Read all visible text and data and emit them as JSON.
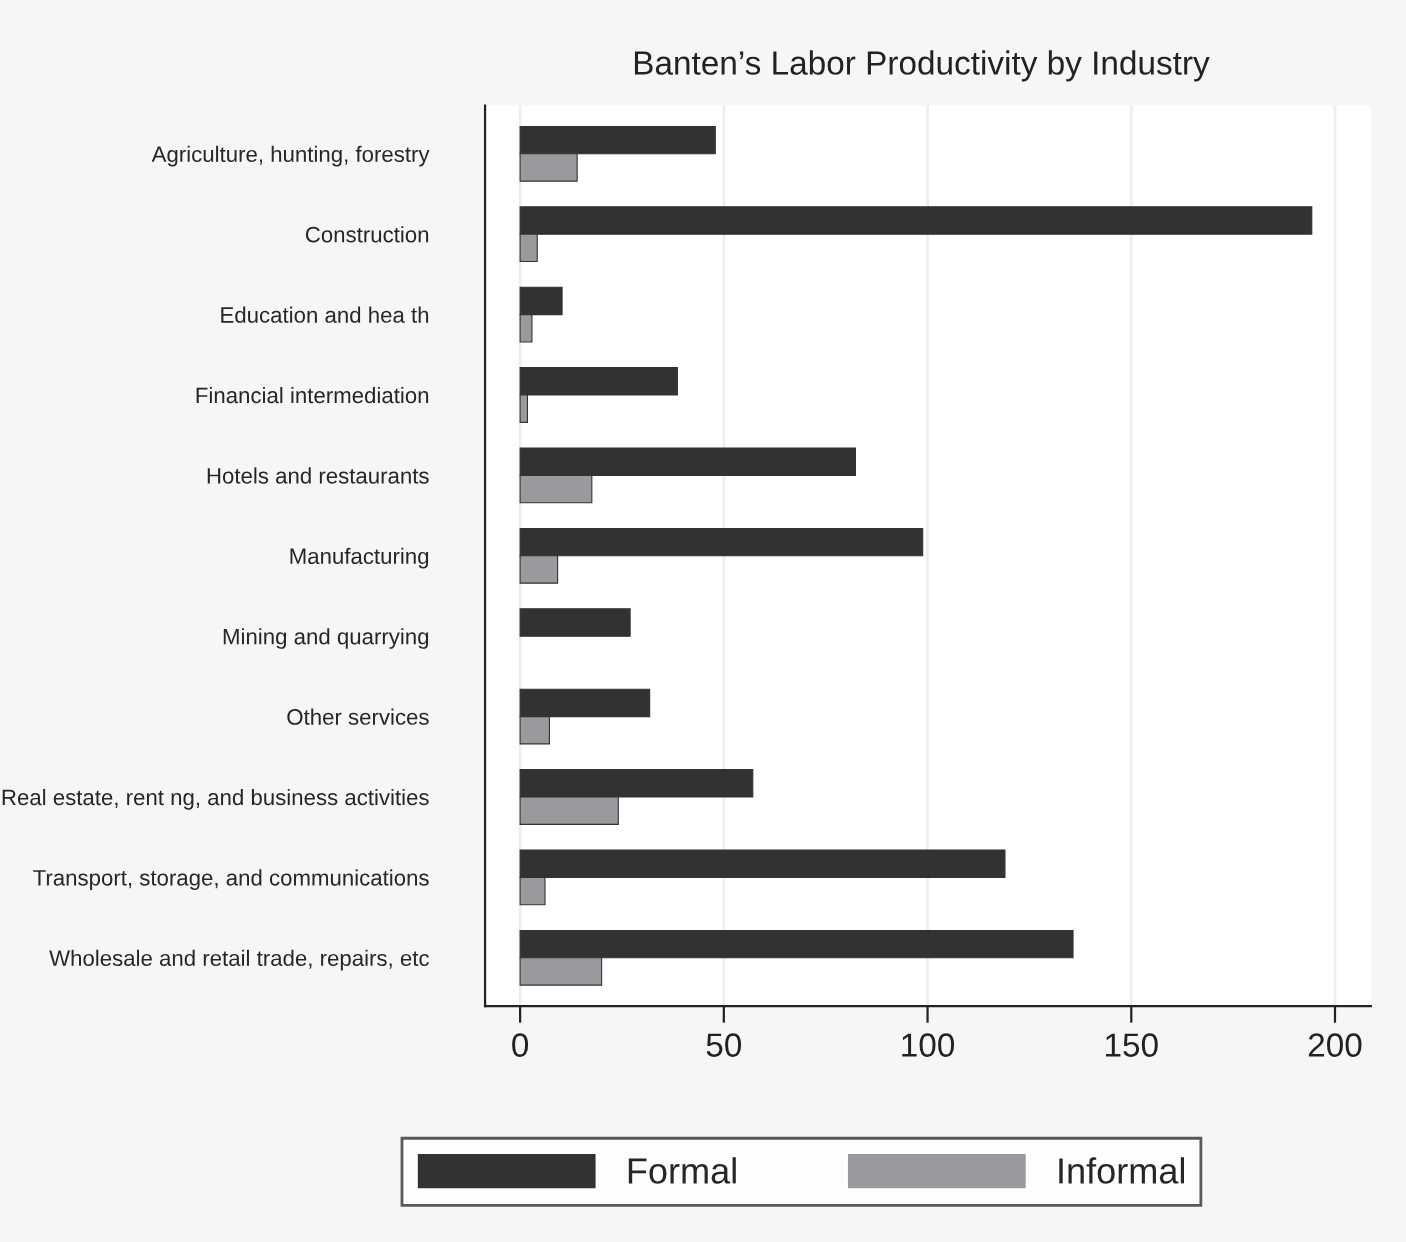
{
  "chart_data": {
    "type": "bar",
    "orientation": "horizontal",
    "title": "Banten’s Labor Productivity by Industry",
    "categories": [
      "Agriculture, hunting, forestry",
      "Construction",
      "Education and hea th",
      "Financial intermediation",
      "Hotels and restaurants",
      "Manufacturing",
      "Mining and quarrying",
      "Other services",
      "Real estate, rent ng, and business activities",
      "Transport, storage, and communications",
      "Wholesale and retail trade, repairs, etc"
    ],
    "series": [
      {
        "name": "Formal",
        "color": "#333132",
        "values": [
          47.9,
          194.3,
          10.3,
          38.6,
          82.3,
          98.8,
          27.0,
          31.8,
          57.1,
          119.0,
          135.7
        ]
      },
      {
        "name": "Informal",
        "color": "#9a9a9e",
        "values": [
          14.0,
          4.2,
          2.9,
          1.8,
          17.6,
          9.2,
          null,
          7.2,
          24.1,
          6.1,
          20.0
        ]
      }
    ],
    "xlim": [
      -8.6,
      208.8
    ],
    "xticks": [
      0,
      50,
      100,
      150,
      200
    ],
    "grid": "x",
    "legend": "bottom"
  }
}
